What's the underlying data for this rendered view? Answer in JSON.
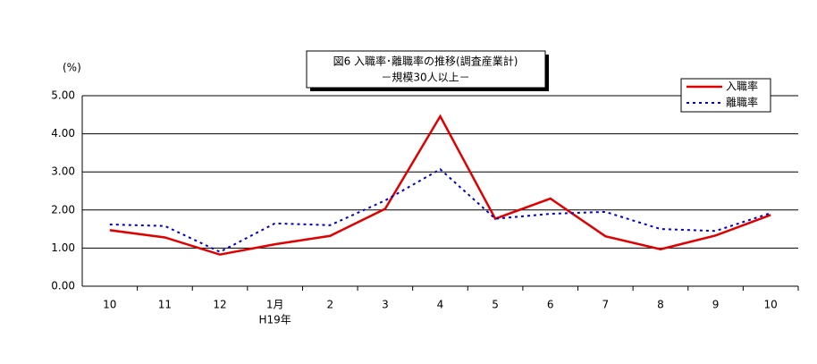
{
  "chart_data": {
    "type": "line",
    "title": "図6  入職率･離職率の推移(調査産業計)",
    "subtitle": "－規模30人以上－",
    "y_axis_label": "(%)",
    "categories": [
      "10",
      "11",
      "12",
      "1月",
      "2",
      "3",
      "4",
      "5",
      "6",
      "7",
      "8",
      "9",
      "10"
    ],
    "year_label": "H19年",
    "series": [
      {
        "name": "入職率",
        "color": "#e00000",
        "line_style": "solid",
        "values": [
          1.47,
          1.28,
          0.83,
          1.1,
          1.32,
          2.03,
          4.46,
          1.77,
          2.3,
          1.31,
          0.97,
          1.33,
          1.87
        ]
      },
      {
        "name": "離職率",
        "color": "#0000cc",
        "line_style": "dashed",
        "values": [
          1.62,
          1.58,
          0.9,
          1.65,
          1.6,
          2.25,
          3.07,
          1.77,
          1.9,
          1.95,
          1.5,
          1.45,
          1.92
        ]
      }
    ],
    "ylim": [
      0,
      5
    ],
    "yticks": [
      {
        "value": 0,
        "label": "0.00"
      },
      {
        "value": 1,
        "label": "1.00"
      },
      {
        "value": 2,
        "label": "2.00"
      },
      {
        "value": 3,
        "label": "3.00"
      },
      {
        "value": 4,
        "label": "4.00"
      },
      {
        "value": 5,
        "label": "5.00"
      }
    ],
    "grid": true,
    "legend": "top-right"
  }
}
